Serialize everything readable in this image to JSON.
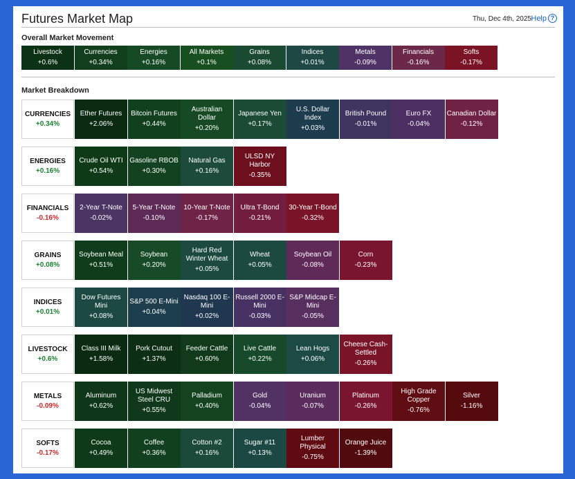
{
  "header": {
    "title": "Futures Market Map",
    "date": "Thu, Dec 4th, 2025",
    "help_label": "Help",
    "help_icon": "?"
  },
  "overall": {
    "title": "Overall Market Movement",
    "tiles": [
      {
        "name": "Livestock",
        "value": "+0.6%",
        "color": "#0c3216"
      },
      {
        "name": "Currencies",
        "value": "+0.34%",
        "color": "#113f1d"
      },
      {
        "name": "Energies",
        "value": "+0.16%",
        "color": "#164a25"
      },
      {
        "name": "All Markets",
        "value": "+0.1%",
        "color": "#174f20"
      },
      {
        "name": "Grains",
        "value": "+0.08%",
        "color": "#1b4a33"
      },
      {
        "name": "Indices",
        "value": "+0.01%",
        "color": "#1d4843"
      },
      {
        "name": "Metals",
        "value": "-0.09%",
        "color": "#4f3266"
      },
      {
        "name": "Financials",
        "value": "-0.16%",
        "color": "#6b2848"
      },
      {
        "name": "Softs",
        "value": "-0.17%",
        "color": "#7a1424"
      }
    ]
  },
  "breakdown": {
    "title": "Market Breakdown",
    "rows": [
      {
        "label": "CURRENCIES",
        "change": "+0.34%",
        "tiles": [
          {
            "name": "Ether Futures",
            "value": "+2.06%",
            "color": "#0b2a12"
          },
          {
            "name": "Bitcoin Futures",
            "value": "+0.44%",
            "color": "#11401f"
          },
          {
            "name": "Australian Dollar",
            "value": "+0.20%",
            "color": "#164a25"
          },
          {
            "name": "Japanese Yen",
            "value": "+0.17%",
            "color": "#1b4a35"
          },
          {
            "name": "U.S. Dollar Index",
            "value": "+0.03%",
            "color": "#1d3c4d"
          },
          {
            "name": "British Pound",
            "value": "-0.01%",
            "color": "#3e345f"
          },
          {
            "name": "Euro FX",
            "value": "-0.04%",
            "color": "#4d2f63"
          },
          {
            "name": "Canadian Dollar",
            "value": "-0.12%",
            "color": "#702245"
          }
        ]
      },
      {
        "label": "ENERGIES",
        "change": "+0.16%",
        "tiles": [
          {
            "name": "Crude Oil WTI",
            "value": "+0.54%",
            "color": "#0f3a18"
          },
          {
            "name": "Gasoline RBOB",
            "value": "+0.30%",
            "color": "#12421f"
          },
          {
            "name": "Natural Gas",
            "value": "+0.16%",
            "color": "#1c4a3b"
          },
          {
            "name": "ULSD NY Harbor",
            "value": "-0.35%",
            "color": "#6d0f1c"
          }
        ]
      },
      {
        "label": "FINANCIALS",
        "change": "-0.16%",
        "tiles": [
          {
            "name": "2-Year T-Note",
            "value": "-0.02%",
            "color": "#4b3565"
          },
          {
            "name": "5-Year T-Note",
            "value": "-0.10%",
            "color": "#5e2a56"
          },
          {
            "name": "10-Year T-Note",
            "value": "-0.17%",
            "color": "#6e2347"
          },
          {
            "name": "Ultra T-Bond",
            "value": "-0.21%",
            "color": "#721d3d"
          },
          {
            "name": "30-Year T-Bond",
            "value": "-0.32%",
            "color": "#7a1428"
          }
        ]
      },
      {
        "label": "GRAINS",
        "change": "+0.08%",
        "tiles": [
          {
            "name": "Soybean Meal",
            "value": "+0.51%",
            "color": "#0f3d1b"
          },
          {
            "name": "Soybean",
            "value": "+0.20%",
            "color": "#174a27"
          },
          {
            "name": "Hard Red Winter Wheat",
            "value": "+0.05%",
            "color": "#1c4a40"
          },
          {
            "name": "Wheat",
            "value": "+0.05%",
            "color": "#1c4a40"
          },
          {
            "name": "Soybean Oil",
            "value": "-0.08%",
            "color": "#5f2a58"
          },
          {
            "name": "Corn",
            "value": "-0.23%",
            "color": "#7a1530"
          }
        ]
      },
      {
        "label": "INDICES",
        "change": "+0.01%",
        "tiles": [
          {
            "name": "Dow Futures Mini",
            "value": "+0.08%",
            "color": "#1c4a42"
          },
          {
            "name": "S&P 500 E-Mini",
            "value": "+0.04%",
            "color": "#1d3e4c"
          },
          {
            "name": "Nasdaq 100 E-Mini",
            "value": "+0.02%",
            "color": "#20384f"
          },
          {
            "name": "Russell 2000 E-Mini",
            "value": "-0.03%",
            "color": "#473263"
          },
          {
            "name": "S&P Midcap E-Mini",
            "value": "-0.05%",
            "color": "#57305f"
          }
        ]
      },
      {
        "label": "LIVESTOCK",
        "change": "+0.6%",
        "tiles": [
          {
            "name": "Class III Milk",
            "value": "+1.58%",
            "color": "#0b2a12"
          },
          {
            "name": "Pork Cutout",
            "value": "+1.37%",
            "color": "#0c2e14"
          },
          {
            "name": "Feeder Cattle",
            "value": "+0.60%",
            "color": "#103a1a"
          },
          {
            "name": "Live Cattle",
            "value": "+0.22%",
            "color": "#164a2b"
          },
          {
            "name": "Lean Hogs",
            "value": "+0.06%",
            "color": "#1c4a44"
          },
          {
            "name": "Cheese Cash-Settled",
            "value": "-0.26%",
            "color": "#7a1429"
          }
        ]
      },
      {
        "label": "METALS",
        "change": "-0.09%",
        "tiles": [
          {
            "name": "Aluminum",
            "value": "+0.62%",
            "color": "#0e3618"
          },
          {
            "name": "US Midwest Steel CRU",
            "value": "+0.55%",
            "color": "#0f391a"
          },
          {
            "name": "Palladium",
            "value": "+0.40%",
            "color": "#13431f"
          },
          {
            "name": "Gold",
            "value": "-0.04%",
            "color": "#513263"
          },
          {
            "name": "Uranium",
            "value": "-0.07%",
            "color": "#5a2d5d"
          },
          {
            "name": "Platinum",
            "value": "-0.26%",
            "color": "#7a1530"
          },
          {
            "name": "High Grade Copper",
            "value": "-0.76%",
            "color": "#5f0c12"
          },
          {
            "name": "Silver",
            "value": "-1.16%",
            "color": "#550a0e"
          }
        ]
      },
      {
        "label": "SOFTS",
        "change": "-0.17%",
        "tiles": [
          {
            "name": "Cocoa",
            "value": "+0.49%",
            "color": "#0f3a1a"
          },
          {
            "name": "Coffee",
            "value": "+0.36%",
            "color": "#11401e"
          },
          {
            "name": "Cotton #2",
            "value": "+0.16%",
            "color": "#1b4a3b"
          },
          {
            "name": "Sugar #11",
            "value": "+0.13%",
            "color": "#1c4843"
          },
          {
            "name": "Lumber Physical",
            "value": "-0.75%",
            "color": "#600b12"
          },
          {
            "name": "Orange Juice",
            "value": "-1.39%",
            "color": "#510a0e"
          }
        ]
      }
    ]
  }
}
